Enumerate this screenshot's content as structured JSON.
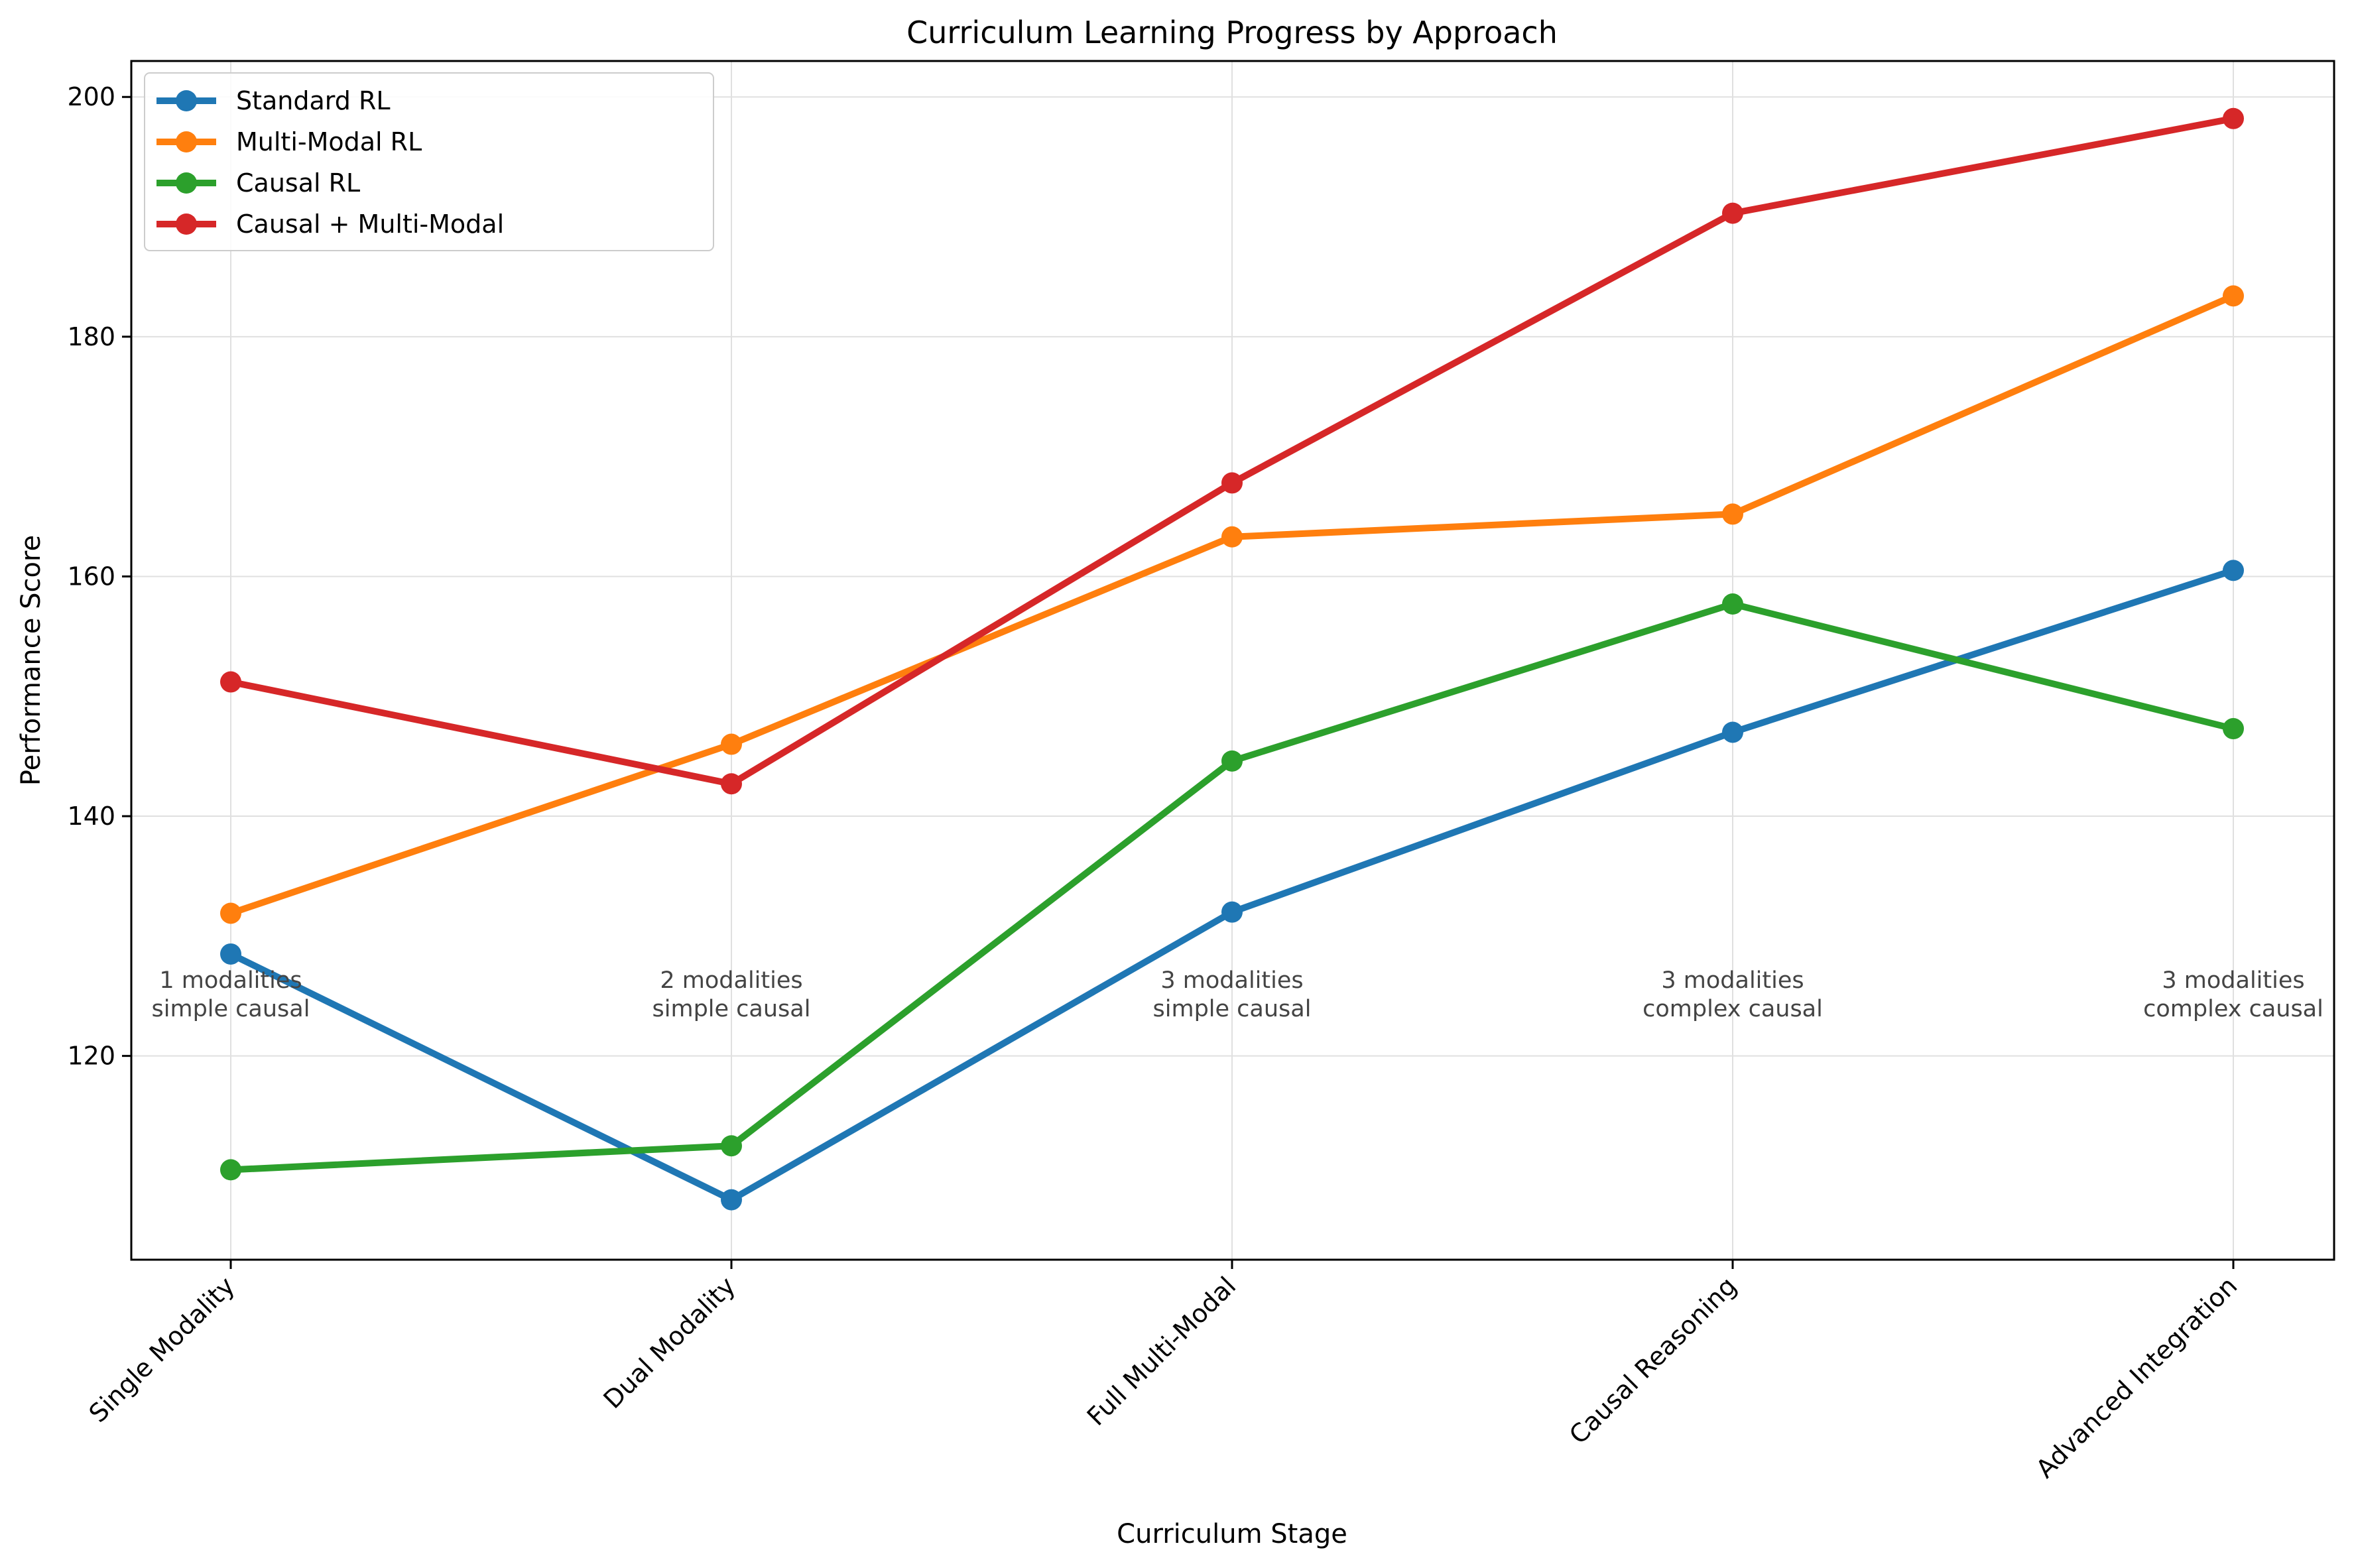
{
  "chart_data": {
    "type": "line",
    "title": "Curriculum Learning Progress by Approach",
    "xlabel": "Curriculum Stage",
    "ylabel": "Performance Score",
    "categories": [
      "Single Modality",
      "Dual Modality",
      "Full Multi-Modal",
      "Causal Reasoning",
      "Advanced Integration"
    ],
    "ylim": [
      103,
      203
    ],
    "yticks": [
      120,
      140,
      160,
      180,
      200
    ],
    "grid": true,
    "legend_position": "top-left",
    "series": [
      {
        "name": "Standard RL",
        "color": "#1f77b4",
        "values": [
          128.5,
          108.0,
          132.0,
          147.0,
          160.5
        ]
      },
      {
        "name": "Multi-Modal RL",
        "color": "#ff7f0e",
        "values": [
          131.9,
          146.0,
          163.3,
          165.2,
          183.4
        ]
      },
      {
        "name": "Causal RL",
        "color": "#2ca02c",
        "values": [
          110.5,
          112.5,
          144.6,
          157.7,
          147.3
        ]
      },
      {
        "name": "Causal + Multi-Modal",
        "color": "#d62728",
        "values": [
          151.2,
          142.7,
          167.8,
          190.3,
          198.2
        ]
      }
    ],
    "annotations": [
      [
        "1 modalities",
        "simple causal"
      ],
      [
        "2 modalities",
        "simple causal"
      ],
      [
        "3 modalities",
        "simple causal"
      ],
      [
        "3 modalities",
        "complex causal"
      ],
      [
        "3 modalities",
        "complex causal"
      ]
    ]
  }
}
